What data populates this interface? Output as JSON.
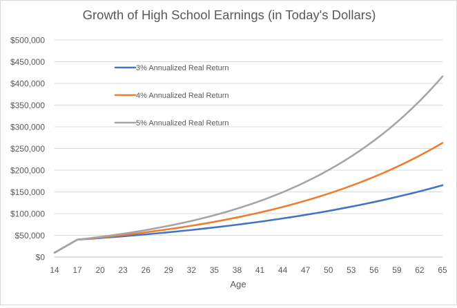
{
  "chart_data": {
    "type": "line",
    "title": "Growth of High School Earnings (in Today's Dollars)",
    "xlabel": "Age",
    "ylabel": "",
    "x": [
      14,
      15,
      16,
      17,
      18,
      19,
      20,
      21,
      22,
      23,
      24,
      25,
      26,
      27,
      28,
      29,
      30,
      31,
      32,
      33,
      34,
      35,
      36,
      37,
      38,
      39,
      40,
      41,
      42,
      43,
      44,
      45,
      46,
      47,
      48,
      49,
      50,
      51,
      52,
      53,
      54,
      55,
      56,
      57,
      58,
      59,
      60,
      61,
      62,
      63,
      64,
      65
    ],
    "x_ticks": [
      14,
      17,
      20,
      23,
      26,
      29,
      32,
      35,
      38,
      41,
      44,
      47,
      50,
      53,
      56,
      59,
      62,
      65
    ],
    "ylim": [
      0,
      500000
    ],
    "y_ticks": [
      0,
      50000,
      100000,
      150000,
      200000,
      250000,
      300000,
      350000,
      400000,
      450000,
      500000
    ],
    "y_tick_labels": [
      "$0",
      "$50,000",
      "$100,000",
      "$150,000",
      "$200,000",
      "$250,000",
      "$300,000",
      "$350,000",
      "$400,000",
      "$450,000",
      "$500,000"
    ],
    "grid": "horizontal",
    "legend_position": "top-left",
    "series": [
      {
        "name": "3% Annualized Real Return",
        "color": "#4472c4",
        "values": [
          10000,
          20000,
          30000,
          40000,
          41200,
          42436,
          43709,
          45020,
          46371,
          47762,
          49195,
          50671,
          52191,
          53757,
          55369,
          57030,
          58741,
          60504,
          62319,
          64188,
          66114,
          68097,
          70140,
          72244,
          74412,
          76644,
          78943,
          81312,
          83751,
          86264,
          88851,
          91517,
          94263,
          97090,
          100003,
          103003,
          106093,
          109276,
          112554,
          115931,
          119409,
          122991,
          126681,
          130482,
          134396,
          138428,
          142581,
          146858,
          151264,
          155802,
          160476,
          165290
        ]
      },
      {
        "name": "4% Annualized Real Return",
        "color": "#ed7d31",
        "values": [
          10000,
          20000,
          30000,
          40000,
          41600,
          43264,
          44995,
          46794,
          48666,
          50613,
          52637,
          54743,
          56932,
          59210,
          61578,
          64041,
          66603,
          69267,
          72038,
          74919,
          77916,
          81033,
          84274,
          87645,
          91151,
          94797,
          98589,
          102533,
          106634,
          110899,
          115335,
          119949,
          124747,
          129736,
          134926,
          140323,
          145936,
          151773,
          157844,
          164158,
          170725,
          177554,
          184656,
          192042,
          199724,
          207713,
          216021,
          224662,
          233649,
          242995,
          252715,
          262824
        ]
      },
      {
        "name": "5% Annualized Real Return",
        "color": "#a5a5a5",
        "values": [
          10000,
          20000,
          30000,
          40000,
          42000,
          44100,
          46305,
          48620,
          51051,
          53604,
          56284,
          59098,
          62053,
          65156,
          68414,
          71834,
          75426,
          79197,
          83157,
          87315,
          91681,
          96265,
          101078,
          106132,
          111439,
          117011,
          122861,
          129004,
          135455,
          142227,
          149339,
          156806,
          164646,
          172878,
          181522,
          190598,
          200128,
          210135,
          220641,
          231674,
          243257,
          255420,
          268191,
          281601,
          295681,
          310465,
          325988,
          342288,
          359402,
          377372,
          396241,
          416053
        ]
      }
    ]
  }
}
